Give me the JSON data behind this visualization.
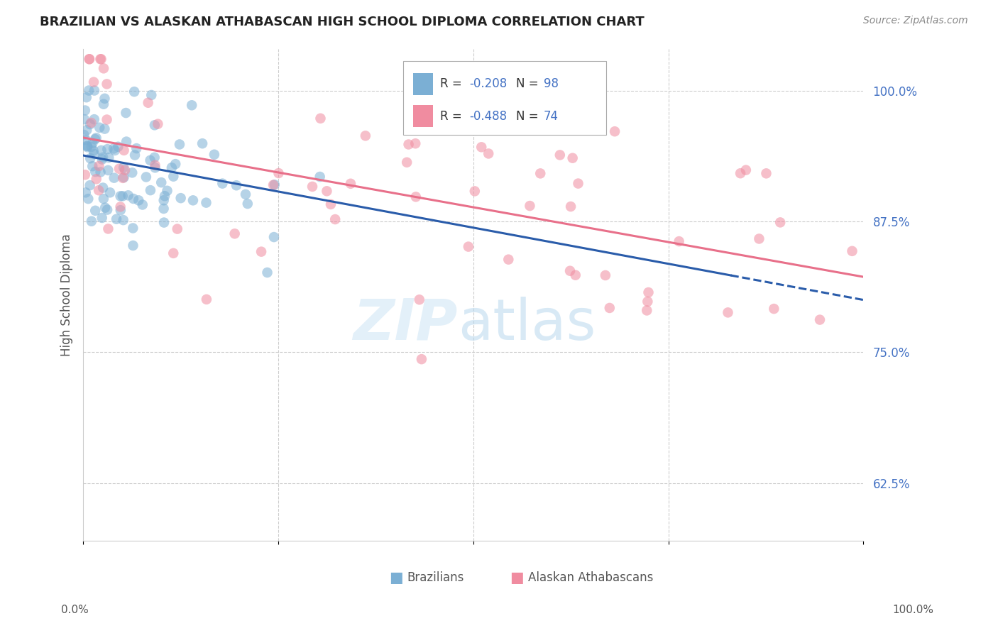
{
  "title": "BRAZILIAN VS ALASKAN ATHABASCAN HIGH SCHOOL DIPLOMA CORRELATION CHART",
  "source": "Source: ZipAtlas.com",
  "ylabel": "High School Diploma",
  "ytick_labels": [
    "62.5%",
    "75.0%",
    "87.5%",
    "100.0%"
  ],
  "ytick_values": [
    0.625,
    0.75,
    0.875,
    1.0
  ],
  "blue_color": "#7bafd4",
  "pink_color": "#f08ca0",
  "blue_line_color": "#2a5caa",
  "pink_line_color": "#e8708a",
  "blue_R": -0.208,
  "blue_N": 98,
  "pink_R": -0.488,
  "pink_N": 74,
  "xmin": 0.0,
  "xmax": 1.0,
  "ymin": 0.57,
  "ymax": 1.04,
  "blue_line_start_y": 0.938,
  "blue_line_end_y": 0.8,
  "blue_line_solid_end_x": 0.83,
  "pink_line_start_y": 0.955,
  "pink_line_end_y": 0.822
}
